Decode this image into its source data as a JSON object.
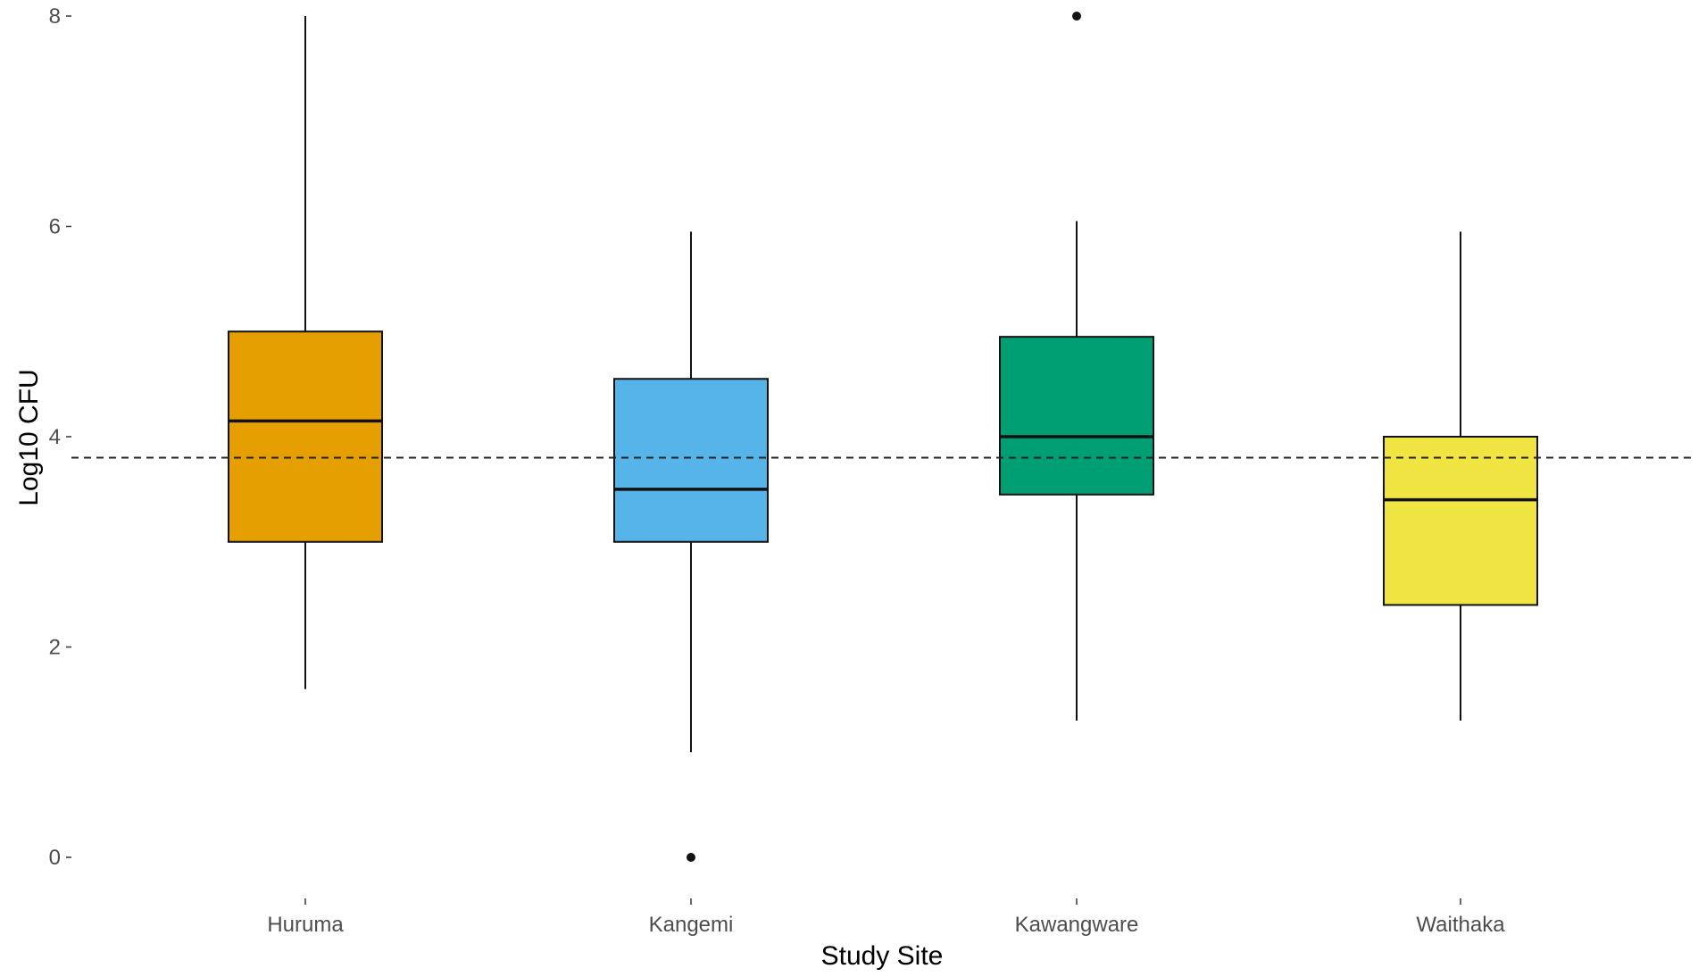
{
  "chart_data": {
    "type": "boxplot",
    "title": "",
    "xlabel": "Study Site",
    "ylabel": "Log10 CFU",
    "categories": [
      "Huruma",
      "Kangemi",
      "Kawangware",
      "Waithaka"
    ],
    "yticks": [
      "0",
      "2",
      "4",
      "6",
      "8"
    ],
    "ylim": [
      0,
      8
    ],
    "reference_line": {
      "y": 3.8,
      "style": "dashed"
    },
    "grid": false,
    "legend": "none",
    "boxes": [
      {
        "category": "Huruma",
        "whisker_low": 1.6,
        "q1": 3.0,
        "median": 4.15,
        "q3": 5.0,
        "whisker_high": 8.0,
        "outliers": [],
        "color": "#E69F00"
      },
      {
        "category": "Kangemi",
        "whisker_low": 1.0,
        "q1": 3.0,
        "median": 3.5,
        "q3": 4.55,
        "whisker_high": 5.95,
        "outliers": [
          0
        ],
        "color": "#56B4E9"
      },
      {
        "category": "Kawangware",
        "whisker_low": 1.3,
        "q1": 3.45,
        "median": 4.0,
        "q3": 4.95,
        "whisker_high": 6.05,
        "outliers": [
          8
        ],
        "color": "#009E73"
      },
      {
        "category": "Waithaka",
        "whisker_low": 1.3,
        "q1": 2.4,
        "median": 3.4,
        "q3": 4.0,
        "whisker_high": 5.95,
        "outliers": [],
        "color": "#F0E442"
      }
    ]
  }
}
